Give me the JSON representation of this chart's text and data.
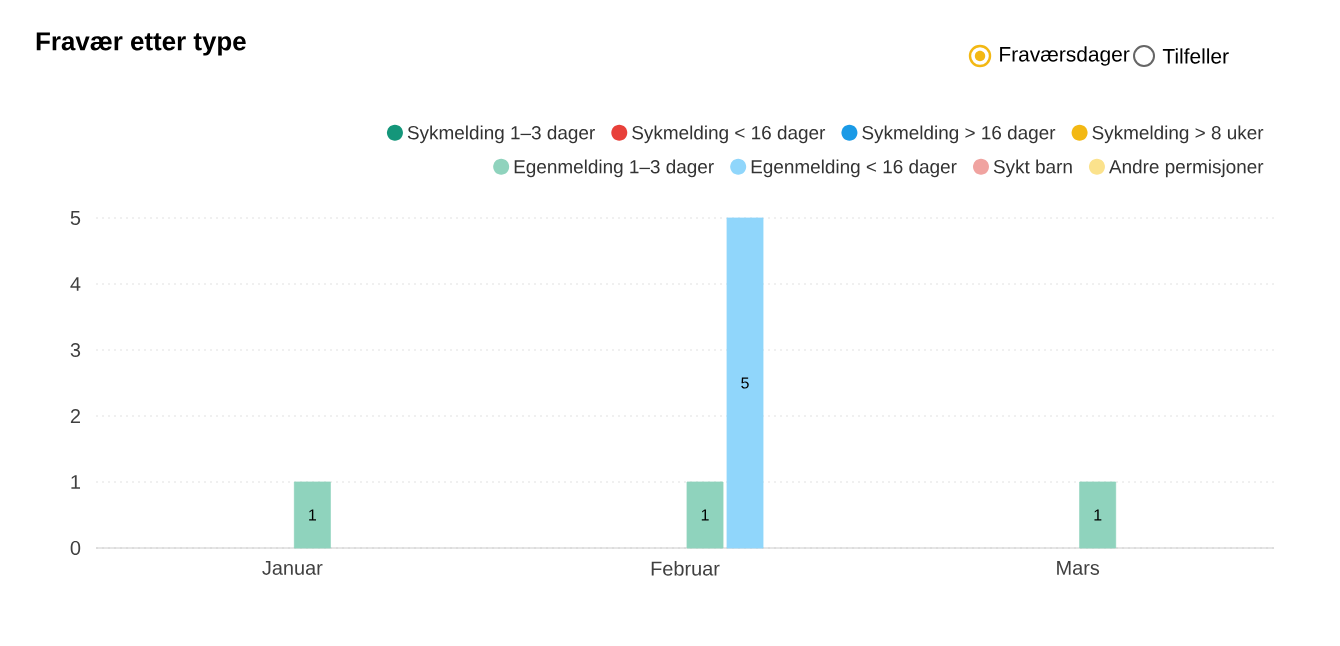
{
  "chart_data": {
    "type": "bar",
    "title": "Fravær etter type",
    "categories": [
      "Januar",
      "Februar",
      "Mars"
    ],
    "series": [
      {
        "name": "Sykmelding 1–3 dager",
        "color": "#14967a",
        "values": [
          null,
          null,
          null
        ]
      },
      {
        "name": "Sykmelding < 16 dager",
        "color": "#e8403a",
        "values": [
          null,
          null,
          null
        ]
      },
      {
        "name": "Sykmelding > 16 dager",
        "color": "#1a9ae6",
        "values": [
          null,
          null,
          null
        ]
      },
      {
        "name": "Sykmelding > 8 uker",
        "color": "#f3b813",
        "values": [
          null,
          null,
          null
        ]
      },
      {
        "name": "Egenmelding 1–3 dager",
        "color": "#8fd3bd",
        "values": [
          1,
          1,
          1
        ]
      },
      {
        "name": "Egenmelding < 16 dager",
        "color": "#90d6fb",
        "values": [
          null,
          5,
          null
        ]
      },
      {
        "name": "Sykt barn",
        "color": "#f0a3a0",
        "values": [
          null,
          null,
          null
        ]
      },
      {
        "name": "Andre permisjoner",
        "color": "#fbe28c",
        "values": [
          null,
          null,
          null
        ]
      }
    ],
    "ylim": [
      0,
      5
    ],
    "yticks": [
      0,
      1,
      2,
      3,
      4,
      5
    ],
    "grid": "y",
    "legend": "top right",
    "data_labels": true,
    "annotations": [
      "Fraværsdager",
      "Tilfeller"
    ]
  }
}
